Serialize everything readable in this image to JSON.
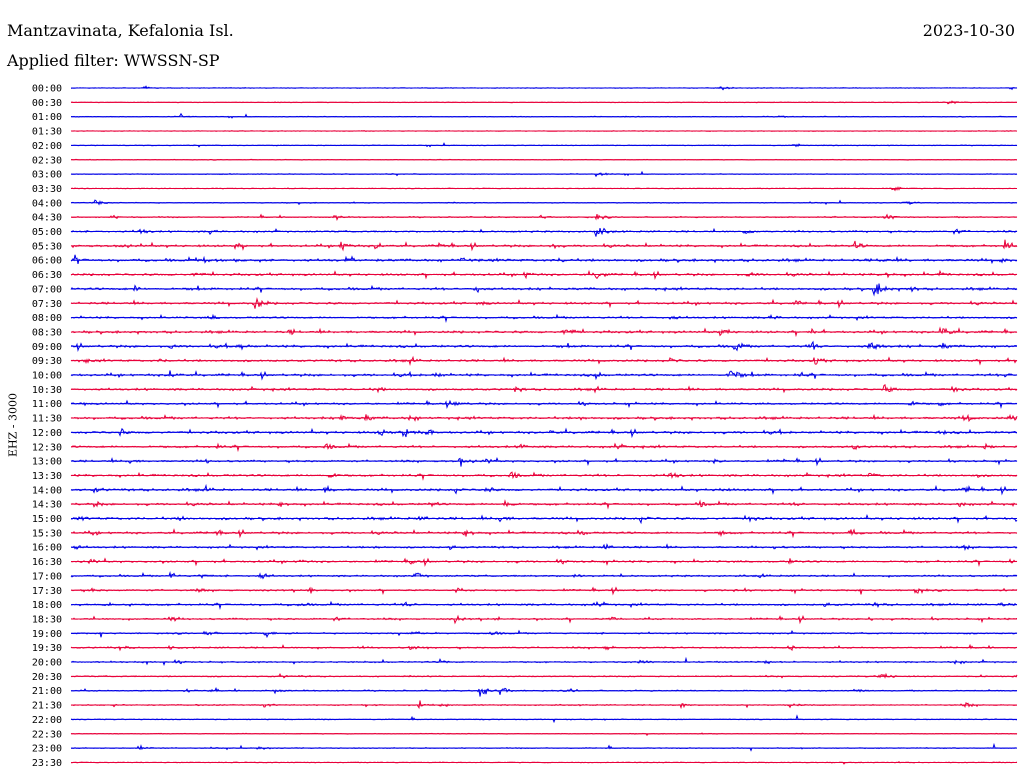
{
  "header": {
    "station": "Mantzavinata, Kefalonia Isl.",
    "date": "2023-10-30",
    "filter": "Applied filter: WWSSN-SP"
  },
  "channel_label": "EHZ - 3000",
  "colors": {
    "blue": "#0000e6",
    "red": "#e8003a"
  },
  "chart_data": {
    "type": "line",
    "description": "helicorder",
    "title": "Mantzavinata, Kefalonia Isl.",
    "ylabel": "EHZ - 3000",
    "rows": [
      {
        "time": "00:00",
        "color": "blue",
        "activity": 0.05,
        "events": [
          [
            145,
            3
          ],
          [
            720,
            4
          ],
          [
            1010,
            3
          ]
        ]
      },
      {
        "time": "00:30",
        "color": "red",
        "activity": 0.05,
        "events": [
          [
            950,
            3
          ]
        ]
      },
      {
        "time": "01:00",
        "color": "blue",
        "activity": 0.08,
        "events": [
          [
            180,
            4
          ],
          [
            780,
            2
          ]
        ]
      },
      {
        "time": "01:30",
        "color": "red",
        "activity": 0.05,
        "events": []
      },
      {
        "time": "02:00",
        "color": "blue",
        "activity": 0.05,
        "events": [
          [
            795,
            3
          ]
        ]
      },
      {
        "time": "02:30",
        "color": "red",
        "activity": 0.05,
        "events": []
      },
      {
        "time": "03:00",
        "color": "blue",
        "activity": 0.06,
        "events": [
          [
            595,
            5
          ]
        ]
      },
      {
        "time": "03:30",
        "color": "red",
        "activity": 0.06,
        "events": [
          [
            890,
            6
          ]
        ]
      },
      {
        "time": "04:00",
        "color": "blue",
        "activity": 0.15,
        "events": [
          [
            95,
            4
          ],
          [
            905,
            4
          ]
        ]
      },
      {
        "time": "04:30",
        "color": "red",
        "activity": 0.25,
        "events": [
          [
            110,
            4
          ],
          [
            335,
            4
          ],
          [
            540,
            4
          ],
          [
            595,
            6
          ],
          [
            885,
            6
          ]
        ]
      },
      {
        "time": "05:00",
        "color": "blue",
        "activity": 0.5,
        "events": [
          [
            140,
            6
          ],
          [
            210,
            5
          ],
          [
            595,
            10
          ],
          [
            745,
            5
          ],
          [
            955,
            5
          ]
        ]
      },
      {
        "time": "05:30",
        "color": "red",
        "activity": 0.7,
        "events": [
          [
            120,
            5
          ],
          [
            235,
            6
          ],
          [
            340,
            9
          ],
          [
            375,
            6
          ],
          [
            440,
            6
          ],
          [
            550,
            6
          ],
          [
            855,
            6
          ],
          [
            1005,
            9
          ]
        ]
      },
      {
        "time": "06:00",
        "color": "blue",
        "activity": 0.9,
        "events": [
          [
            75,
            6
          ],
          [
            205,
            5
          ],
          [
            460,
            4
          ],
          [
            560,
            5
          ],
          [
            880,
            5
          ],
          [
            1000,
            5
          ]
        ]
      },
      {
        "time": "06:30",
        "color": "red",
        "activity": 0.7,
        "events": [
          [
            195,
            6
          ],
          [
            525,
            6
          ],
          [
            595,
            8
          ],
          [
            750,
            5
          ],
          [
            885,
            6
          ],
          [
            940,
            5
          ]
        ]
      },
      {
        "time": "07:00",
        "color": "blue",
        "activity": 0.8,
        "events": [
          [
            135,
            6
          ],
          [
            475,
            9
          ],
          [
            875,
            13
          ],
          [
            910,
            6
          ]
        ]
      },
      {
        "time": "07:30",
        "color": "red",
        "activity": 0.7,
        "events": [
          [
            255,
            11
          ],
          [
            480,
            5
          ],
          [
            795,
            5
          ]
        ]
      },
      {
        "time": "08:00",
        "color": "blue",
        "activity": 0.6,
        "events": [
          [
            210,
            5
          ],
          [
            670,
            5
          ],
          [
            770,
            5
          ]
        ]
      },
      {
        "time": "08:30",
        "color": "red",
        "activity": 0.8,
        "events": [
          [
            290,
            5
          ],
          [
            565,
            9
          ],
          [
            720,
            9
          ],
          [
            810,
            6
          ],
          [
            940,
            11
          ]
        ]
      },
      {
        "time": "09:00",
        "color": "blue",
        "activity": 0.8,
        "events": [
          [
            170,
            5
          ],
          [
            240,
            6
          ],
          [
            810,
            9
          ],
          [
            870,
            12
          ],
          [
            940,
            8
          ],
          [
            735,
            8
          ]
        ]
      },
      {
        "time": "09:30",
        "color": "red",
        "activity": 0.7,
        "events": [
          [
            85,
            4
          ],
          [
            160,
            4
          ],
          [
            410,
            5
          ],
          [
            670,
            5
          ],
          [
            815,
            8
          ],
          [
            1015,
            5
          ]
        ]
      },
      {
        "time": "10:00",
        "color": "blue",
        "activity": 0.8,
        "events": [
          [
            170,
            7
          ],
          [
            435,
            5
          ],
          [
            595,
            5
          ],
          [
            730,
            13
          ],
          [
            800,
            5
          ],
          [
            1005,
            5
          ]
        ]
      },
      {
        "time": "10:30",
        "color": "red",
        "activity": 0.7,
        "events": [
          [
            375,
            5
          ],
          [
            515,
            6
          ],
          [
            595,
            4
          ],
          [
            885,
            8
          ],
          [
            955,
            6
          ]
        ]
      },
      {
        "time": "11:00",
        "color": "blue",
        "activity": 0.6,
        "events": [
          [
            80,
            4
          ],
          [
            455,
            5
          ],
          [
            580,
            4
          ],
          [
            910,
            6
          ],
          [
            940,
            4
          ]
        ]
      },
      {
        "time": "11:30",
        "color": "red",
        "activity": 0.8,
        "events": [
          [
            340,
            8
          ],
          [
            365,
            7
          ],
          [
            410,
            6
          ],
          [
            580,
            5
          ],
          [
            965,
            8
          ],
          [
            1010,
            6
          ]
        ]
      },
      {
        "time": "12:00",
        "color": "blue",
        "activity": 0.8,
        "events": [
          [
            120,
            6
          ],
          [
            380,
            8
          ],
          [
            405,
            12
          ],
          [
            425,
            8
          ],
          [
            550,
            4
          ],
          [
            940,
            4
          ]
        ]
      },
      {
        "time": "12:30",
        "color": "red",
        "activity": 0.7,
        "events": [
          [
            215,
            5
          ],
          [
            325,
            6
          ],
          [
            520,
            6
          ],
          [
            615,
            5
          ],
          [
            850,
            6
          ],
          [
            985,
            5
          ]
        ]
      },
      {
        "time": "13:00",
        "color": "blue",
        "activity": 0.6,
        "events": [
          [
            130,
            5
          ],
          [
            205,
            4
          ],
          [
            460,
            8
          ],
          [
            485,
            5
          ],
          [
            715,
            4
          ],
          [
            785,
            4
          ]
        ]
      },
      {
        "time": "13:30",
        "color": "red",
        "activity": 0.7,
        "events": [
          [
            330,
            6
          ],
          [
            510,
            7
          ],
          [
            670,
            8
          ],
          [
            870,
            5
          ],
          [
            975,
            5
          ]
        ]
      },
      {
        "time": "14:00",
        "color": "blue",
        "activity": 0.8,
        "events": [
          [
            95,
            5
          ],
          [
            205,
            5
          ],
          [
            325,
            6
          ],
          [
            455,
            5
          ],
          [
            485,
            6
          ],
          [
            720,
            5
          ],
          [
            965,
            7
          ]
        ]
      },
      {
        "time": "14:30",
        "color": "red",
        "activity": 0.7,
        "events": [
          [
            95,
            5
          ],
          [
            280,
            5
          ],
          [
            430,
            5
          ],
          [
            505,
            7
          ],
          [
            700,
            5
          ],
          [
            795,
            5
          ],
          [
            960,
            5
          ]
        ]
      },
      {
        "time": "15:00",
        "color": "blue",
        "activity": 0.8,
        "events": [
          [
            80,
            5
          ],
          [
            180,
            5
          ],
          [
            420,
            6
          ],
          [
            500,
            7
          ],
          [
            640,
            6
          ],
          [
            750,
            7
          ],
          [
            1015,
            6
          ]
        ]
      },
      {
        "time": "15:30",
        "color": "red",
        "activity": 0.7,
        "events": [
          [
            90,
            5
          ],
          [
            215,
            6
          ],
          [
            465,
            7
          ],
          [
            580,
            5
          ],
          [
            720,
            5
          ],
          [
            850,
            6
          ]
        ]
      },
      {
        "time": "16:00",
        "color": "blue",
        "activity": 0.6,
        "events": [
          [
            75,
            4
          ],
          [
            375,
            4
          ],
          [
            450,
            5
          ],
          [
            605,
            5
          ],
          [
            775,
            4
          ],
          [
            965,
            4
          ]
        ]
      },
      {
        "time": "16:30",
        "color": "red",
        "activity": 0.6,
        "events": [
          [
            90,
            4
          ],
          [
            300,
            4
          ],
          [
            410,
            5
          ],
          [
            560,
            4
          ],
          [
            790,
            4
          ],
          [
            1010,
            4
          ]
        ]
      },
      {
        "time": "17:00",
        "color": "blue",
        "activity": 0.5,
        "events": [
          [
            170,
            6
          ],
          [
            200,
            5
          ],
          [
            260,
            6
          ],
          [
            415,
            6
          ],
          [
            575,
            4
          ],
          [
            760,
            4
          ],
          [
            1015,
            4
          ]
        ]
      },
      {
        "time": "17:30",
        "color": "red",
        "activity": 0.5,
        "events": [
          [
            90,
            4
          ],
          [
            195,
            5
          ],
          [
            310,
            4
          ],
          [
            455,
            4
          ],
          [
            735,
            4
          ],
          [
            915,
            6
          ]
        ]
      },
      {
        "time": "18:00",
        "color": "blue",
        "activity": 0.6,
        "events": [
          [
            105,
            4
          ],
          [
            300,
            5
          ],
          [
            405,
            6
          ],
          [
            595,
            5
          ],
          [
            825,
            5
          ],
          [
            875,
            5
          ],
          [
            1000,
            4
          ]
        ]
      },
      {
        "time": "18:30",
        "color": "red",
        "activity": 0.5,
        "events": [
          [
            170,
            5
          ],
          [
            335,
            4
          ],
          [
            455,
            5
          ],
          [
            610,
            4
          ],
          [
            870,
            4
          ]
        ]
      },
      {
        "time": "19:00",
        "color": "blue",
        "activity": 0.4,
        "events": [
          [
            205,
            5
          ],
          [
            265,
            6
          ],
          [
            410,
            4
          ],
          [
            490,
            5
          ]
        ]
      },
      {
        "time": "19:30",
        "color": "red",
        "activity": 0.4,
        "events": [
          [
            120,
            4
          ],
          [
            170,
            4
          ],
          [
            410,
            4
          ],
          [
            605,
            4
          ],
          [
            790,
            4
          ]
        ]
      },
      {
        "time": "20:00",
        "color": "blue",
        "activity": 0.4,
        "events": [
          [
            175,
            4
          ],
          [
            440,
            4
          ],
          [
            640,
            5
          ],
          [
            765,
            4
          ],
          [
            955,
            4
          ]
        ]
      },
      {
        "time": "20:30",
        "color": "red",
        "activity": 0.3,
        "events": [
          [
            880,
            7
          ],
          [
            1015,
            6
          ],
          [
            280,
            3
          ]
        ]
      },
      {
        "time": "21:00",
        "color": "blue",
        "activity": 0.3,
        "events": [
          [
            185,
            4
          ],
          [
            275,
            4
          ],
          [
            480,
            10
          ],
          [
            500,
            8
          ],
          [
            570,
            4
          ],
          [
            855,
            4
          ]
        ]
      },
      {
        "time": "21:30",
        "color": "red",
        "activity": 0.25,
        "events": [
          [
            265,
            4
          ],
          [
            420,
            5
          ],
          [
            440,
            4
          ],
          [
            680,
            5
          ],
          [
            790,
            4
          ],
          [
            965,
            4
          ]
        ]
      },
      {
        "time": "22:00",
        "color": "blue",
        "activity": 0.15,
        "events": []
      },
      {
        "time": "22:30",
        "color": "red",
        "activity": 0.1,
        "events": []
      },
      {
        "time": "23:00",
        "color": "blue",
        "activity": 0.15,
        "events": [
          [
            138,
            6
          ],
          [
            258,
            4
          ]
        ]
      },
      {
        "time": "23:30",
        "color": "red",
        "activity": 0.1,
        "events": []
      }
    ]
  }
}
